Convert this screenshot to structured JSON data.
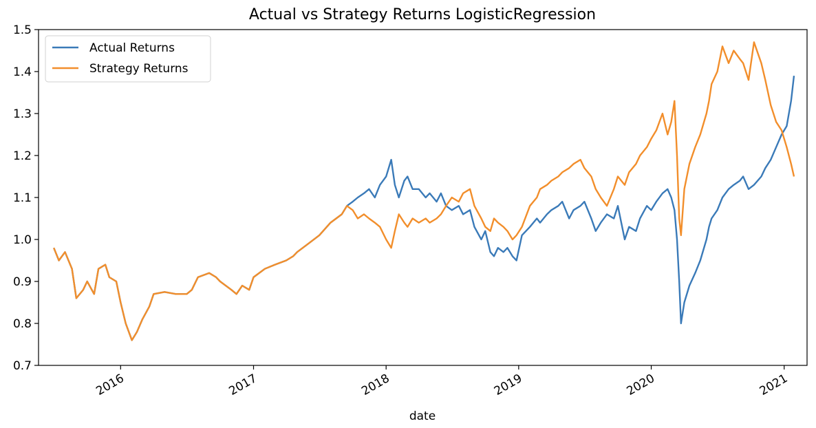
{
  "chart_data": {
    "type": "line",
    "title": "Actual vs Strategy Returns LogisticRegression",
    "xlabel": "date",
    "ylabel": "",
    "xlim": [
      "2015-05-20",
      "2021-03-05"
    ],
    "ylim": [
      0.7,
      1.5
    ],
    "xticks": [
      "2016-01-01",
      "2017-01-01",
      "2018-01-01",
      "2019-01-01",
      "2020-01-01",
      "2021-01-01"
    ],
    "xtick_labels": [
      "2016",
      "2017",
      "2018",
      "2019",
      "2020",
      "2021"
    ],
    "yticks": [
      0.7,
      0.8,
      0.9,
      1.0,
      1.1,
      1.2,
      1.3,
      1.4,
      1.5
    ],
    "ytick_labels": [
      "0.7",
      "0.8",
      "0.9",
      "1.0",
      "1.1",
      "1.2",
      "1.3",
      "1.4",
      "1.5"
    ],
    "grid": false,
    "legend": "upper left",
    "series": [
      {
        "name": "Actual Returns",
        "color": "#3a7ab8",
        "x": [
          "2015-07-01",
          "2015-07-15",
          "2015-08-01",
          "2015-08-20",
          "2015-09-01",
          "2015-09-20",
          "2015-10-01",
          "2015-10-20",
          "2015-11-01",
          "2015-11-20",
          "2015-12-01",
          "2015-12-20",
          "2016-01-01",
          "2016-01-15",
          "2016-02-01",
          "2016-02-15",
          "2016-03-01",
          "2016-03-20",
          "2016-04-01",
          "2016-05-01",
          "2016-06-01",
          "2016-07-01",
          "2016-07-15",
          "2016-08-01",
          "2016-09-01",
          "2016-09-20",
          "2016-10-01",
          "2016-11-01",
          "2016-11-15",
          "2016-12-01",
          "2016-12-20",
          "2017-01-01",
          "2017-02-01",
          "2017-03-01",
          "2017-04-01",
          "2017-04-20",
          "2017-05-01",
          "2017-06-01",
          "2017-07-01",
          "2017-08-01",
          "2017-09-01",
          "2017-09-15",
          "2017-10-01",
          "2017-10-15",
          "2017-11-01",
          "2017-11-15",
          "2017-12-01",
          "2017-12-15",
          "2018-01-01",
          "2018-01-15",
          "2018-01-25",
          "2018-02-05",
          "2018-02-20",
          "2018-03-01",
          "2018-03-15",
          "2018-04-01",
          "2018-04-20",
          "2018-05-01",
          "2018-05-20",
          "2018-06-01",
          "2018-06-15",
          "2018-07-01",
          "2018-07-20",
          "2018-08-01",
          "2018-08-20",
          "2018-09-01",
          "2018-09-20",
          "2018-10-01",
          "2018-10-15",
          "2018-10-25",
          "2018-11-05",
          "2018-11-20",
          "2018-12-01",
          "2018-12-15",
          "2018-12-26",
          "2019-01-10",
          "2019-02-01",
          "2019-02-20",
          "2019-03-01",
          "2019-03-20",
          "2019-04-01",
          "2019-04-20",
          "2019-05-01",
          "2019-05-20",
          "2019-06-01",
          "2019-06-20",
          "2019-07-01",
          "2019-07-20",
          "2019-08-01",
          "2019-08-15",
          "2019-09-01",
          "2019-09-20",
          "2019-10-01",
          "2019-10-20",
          "2019-11-01",
          "2019-11-20",
          "2019-12-01",
          "2019-12-20",
          "2020-01-01",
          "2020-01-15",
          "2020-02-01",
          "2020-02-15",
          "2020-02-25",
          "2020-03-05",
          "2020-03-12",
          "2020-03-18",
          "2020-03-23",
          "2020-04-01",
          "2020-04-15",
          "2020-05-01",
          "2020-05-15",
          "2020-06-01",
          "2020-06-08",
          "2020-06-15",
          "2020-07-01",
          "2020-07-15",
          "2020-08-01",
          "2020-08-15",
          "2020-09-01",
          "2020-09-10",
          "2020-09-25",
          "2020-10-10",
          "2020-10-30",
          "2020-11-10",
          "2020-11-25",
          "2020-12-10",
          "2020-12-25",
          "2021-01-08",
          "2021-01-20",
          "2021-01-28"
        ],
        "y": [
          0.98,
          0.95,
          0.97,
          0.93,
          0.86,
          0.88,
          0.9,
          0.87,
          0.93,
          0.94,
          0.91,
          0.9,
          0.85,
          0.8,
          0.76,
          0.78,
          0.81,
          0.84,
          0.87,
          0.875,
          0.87,
          0.87,
          0.88,
          0.91,
          0.92,
          0.91,
          0.9,
          0.88,
          0.87,
          0.89,
          0.88,
          0.91,
          0.93,
          0.94,
          0.95,
          0.96,
          0.97,
          0.99,
          1.01,
          1.04,
          1.06,
          1.08,
          1.09,
          1.1,
          1.11,
          1.12,
          1.1,
          1.13,
          1.15,
          1.19,
          1.13,
          1.1,
          1.14,
          1.15,
          1.12,
          1.12,
          1.1,
          1.11,
          1.09,
          1.11,
          1.08,
          1.07,
          1.08,
          1.06,
          1.07,
          1.03,
          1.0,
          1.02,
          0.97,
          0.96,
          0.98,
          0.97,
          0.98,
          0.96,
          0.95,
          1.01,
          1.03,
          1.05,
          1.04,
          1.06,
          1.07,
          1.08,
          1.09,
          1.05,
          1.07,
          1.08,
          1.09,
          1.05,
          1.02,
          1.04,
          1.06,
          1.05,
          1.08,
          1.0,
          1.03,
          1.02,
          1.05,
          1.08,
          1.07,
          1.09,
          1.11,
          1.12,
          1.1,
          1.07,
          1.0,
          0.9,
          0.8,
          0.85,
          0.89,
          0.92,
          0.95,
          1.0,
          1.03,
          1.05,
          1.07,
          1.1,
          1.12,
          1.13,
          1.14,
          1.15,
          1.12,
          1.13,
          1.15,
          1.17,
          1.19,
          1.22,
          1.25,
          1.27,
          1.33,
          1.39
        ],
        "values_note_hidden": ""
      },
      {
        "name": "Strategy Returns",
        "color": "#f28e2b",
        "x": [
          "2015-07-01",
          "2015-07-15",
          "2015-08-01",
          "2015-08-20",
          "2015-09-01",
          "2015-09-20",
          "2015-10-01",
          "2015-10-20",
          "2015-11-01",
          "2015-11-20",
          "2015-12-01",
          "2015-12-20",
          "2016-01-01",
          "2016-01-15",
          "2016-02-01",
          "2016-02-15",
          "2016-03-01",
          "2016-03-20",
          "2016-04-01",
          "2016-05-01",
          "2016-06-01",
          "2016-07-01",
          "2016-07-15",
          "2016-08-01",
          "2016-09-01",
          "2016-09-20",
          "2016-10-01",
          "2016-11-01",
          "2016-11-15",
          "2016-12-01",
          "2016-12-20",
          "2017-01-01",
          "2017-02-01",
          "2017-03-01",
          "2017-04-01",
          "2017-04-20",
          "2017-05-01",
          "2017-06-01",
          "2017-07-01",
          "2017-08-01",
          "2017-09-01",
          "2017-09-15",
          "2017-10-01",
          "2017-10-15",
          "2017-11-01",
          "2017-11-15",
          "2017-12-01",
          "2017-12-15",
          "2018-01-01",
          "2018-01-15",
          "2018-01-25",
          "2018-02-05",
          "2018-02-20",
          "2018-03-01",
          "2018-03-15",
          "2018-04-01",
          "2018-04-20",
          "2018-05-01",
          "2018-05-20",
          "2018-06-01",
          "2018-06-15",
          "2018-07-01",
          "2018-07-20",
          "2018-08-01",
          "2018-08-20",
          "2018-09-01",
          "2018-09-20",
          "2018-10-01",
          "2018-10-15",
          "2018-10-25",
          "2018-11-05",
          "2018-11-20",
          "2018-12-01",
          "2018-12-15",
          "2018-12-26",
          "2019-01-10",
          "2019-02-01",
          "2019-02-20",
          "2019-03-01",
          "2019-03-20",
          "2019-04-01",
          "2019-04-20",
          "2019-05-01",
          "2019-05-20",
          "2019-06-01",
          "2019-06-20",
          "2019-07-01",
          "2019-07-20",
          "2019-08-01",
          "2019-08-15",
          "2019-09-01",
          "2019-09-20",
          "2019-10-01",
          "2019-10-20",
          "2019-11-01",
          "2019-11-20",
          "2019-12-01",
          "2019-12-20",
          "2020-01-01",
          "2020-01-15",
          "2020-02-01",
          "2020-02-15",
          "2020-02-25",
          "2020-03-05",
          "2020-03-12",
          "2020-03-18",
          "2020-03-23",
          "2020-04-01",
          "2020-04-15",
          "2020-05-01",
          "2020-05-15",
          "2020-06-01",
          "2020-06-08",
          "2020-06-15",
          "2020-07-01",
          "2020-07-15",
          "2020-08-01",
          "2020-08-15",
          "2020-09-01",
          "2020-09-10",
          "2020-09-25",
          "2020-10-10",
          "2020-10-30",
          "2020-11-10",
          "2020-11-25",
          "2020-12-10",
          "2020-12-25",
          "2021-01-08",
          "2021-01-20",
          "2021-01-28"
        ],
        "y": [
          0.98,
          0.95,
          0.97,
          0.93,
          0.86,
          0.88,
          0.9,
          0.87,
          0.93,
          0.94,
          0.91,
          0.9,
          0.85,
          0.8,
          0.76,
          0.78,
          0.81,
          0.84,
          0.87,
          0.875,
          0.87,
          0.87,
          0.88,
          0.91,
          0.92,
          0.91,
          0.9,
          0.88,
          0.87,
          0.89,
          0.88,
          0.91,
          0.93,
          0.94,
          0.95,
          0.96,
          0.97,
          0.99,
          1.01,
          1.04,
          1.06,
          1.08,
          1.07,
          1.05,
          1.06,
          1.05,
          1.04,
          1.03,
          1.0,
          0.98,
          1.02,
          1.06,
          1.04,
          1.03,
          1.05,
          1.04,
          1.05,
          1.04,
          1.05,
          1.06,
          1.08,
          1.1,
          1.09,
          1.11,
          1.12,
          1.08,
          1.05,
          1.03,
          1.02,
          1.05,
          1.04,
          1.03,
          1.02,
          1.0,
          1.01,
          1.03,
          1.08,
          1.1,
          1.12,
          1.13,
          1.14,
          1.15,
          1.16,
          1.17,
          1.18,
          1.19,
          1.17,
          1.15,
          1.12,
          1.1,
          1.08,
          1.12,
          1.15,
          1.13,
          1.16,
          1.18,
          1.2,
          1.22,
          1.24,
          1.26,
          1.3,
          1.25,
          1.28,
          1.33,
          1.2,
          1.05,
          1.01,
          1.12,
          1.18,
          1.22,
          1.25,
          1.3,
          1.33,
          1.37,
          1.4,
          1.46,
          1.42,
          1.45,
          1.43,
          1.42,
          1.38,
          1.47,
          1.42,
          1.38,
          1.32,
          1.28,
          1.26,
          1.22,
          1.18,
          1.15
        ]
      }
    ]
  }
}
